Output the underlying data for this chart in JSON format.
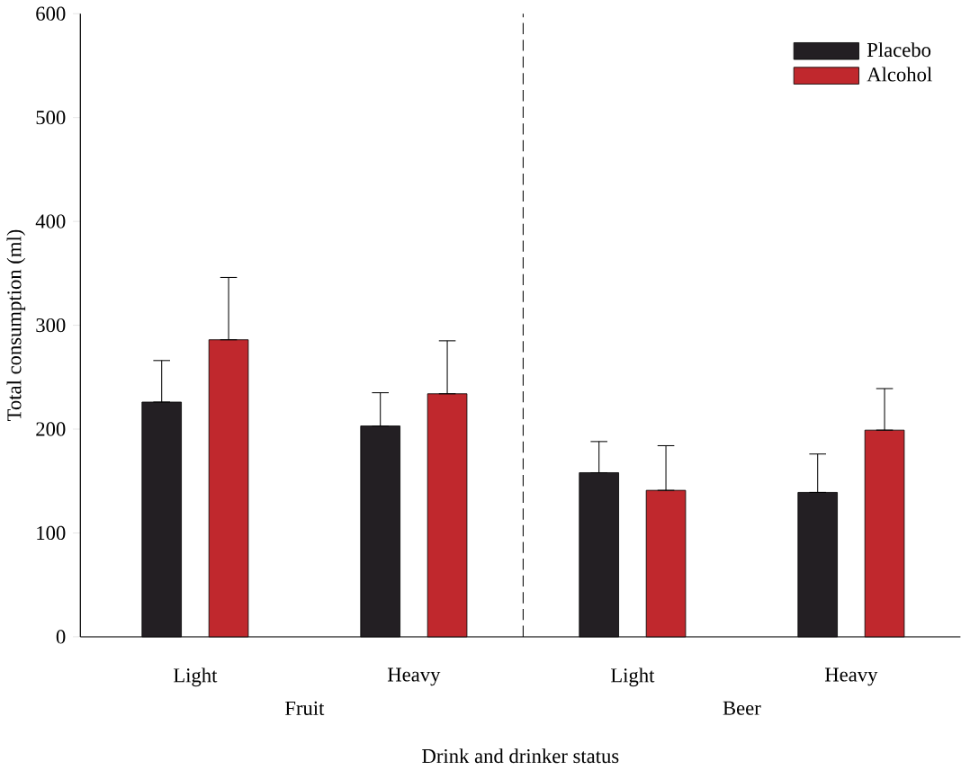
{
  "chart_data": {
    "type": "bar",
    "xlabel": "Drink and drinker status",
    "ylabel": "Total consumption (ml)",
    "categories": [
      "Light",
      "Heavy",
      "Light",
      "Heavy"
    ],
    "series": [
      {
        "name": "Placebo",
        "color": "#231f23",
        "values": [
          226,
          203,
          158,
          139
        ],
        "errors": [
          [
            226,
            266
          ],
          [
            203,
            235
          ],
          [
            158,
            188
          ],
          [
            139,
            176
          ]
        ]
      },
      {
        "name": "Alcohol",
        "color": "#c0282d",
        "values": [
          286,
          234,
          141,
          199
        ],
        "errors": [
          [
            286,
            346
          ],
          [
            234,
            285
          ],
          [
            141,
            184
          ],
          [
            199,
            239
          ]
        ]
      }
    ],
    "ylim": [
      0,
      600
    ],
    "yticks": [
      0,
      100,
      200,
      300,
      400,
      500,
      600
    ],
    "annotations": [
      "Fruit",
      "Beer"
    ],
    "legend": "top right",
    "grid": false
  }
}
